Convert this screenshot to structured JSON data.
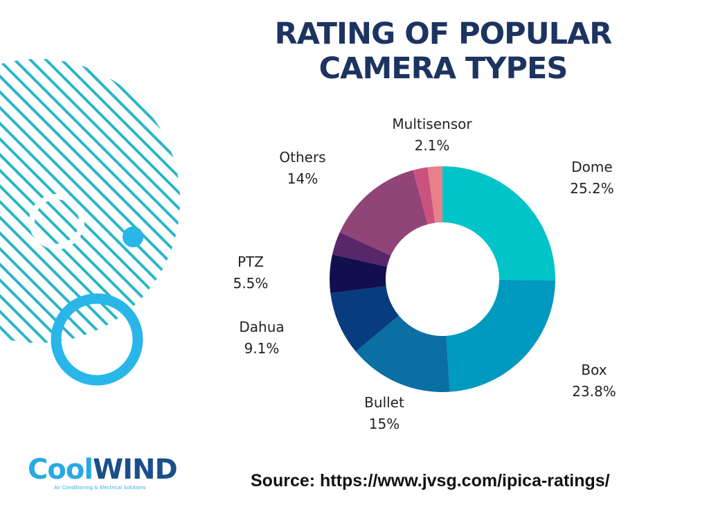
{
  "title_line1": "RATING OF POPULAR",
  "title_line2": "CAMERA TYPES",
  "source": "Source: https://www.jvsg.com/ipica-ratings/",
  "logo": {
    "word_part1": "Cool",
    "word_part2": "WIND",
    "tagline": "Air Conditioning & Electrical Solutions"
  },
  "colors": {
    "title": "#1d3461",
    "accent_stripe": "#29b6c8",
    "accent_ring": "#29b6e8"
  },
  "chart_data": {
    "type": "pie",
    "style": "donut",
    "title": "RATING OF POPULAR CAMERA TYPES",
    "categories": [
      "Dome",
      "Box",
      "Bullet",
      "Dahua",
      "PTZ",
      "",
      "Others",
      "",
      "Multisensor"
    ],
    "values": [
      25.2,
      23.8,
      15,
      9.1,
      5.5,
      3.3,
      14,
      2.1,
      2.1
    ],
    "labels": [
      "25.2%",
      "23.8%",
      "15%",
      "9.1%",
      "5.5%",
      "",
      "14%",
      "",
      "2.1%"
    ],
    "colors": [
      "#00c4c8",
      "#0099bf",
      "#0a6fa3",
      "#073c7e",
      "#120f4f",
      "#57276a",
      "#914477",
      "#c9527e",
      "#ea8088"
    ]
  }
}
